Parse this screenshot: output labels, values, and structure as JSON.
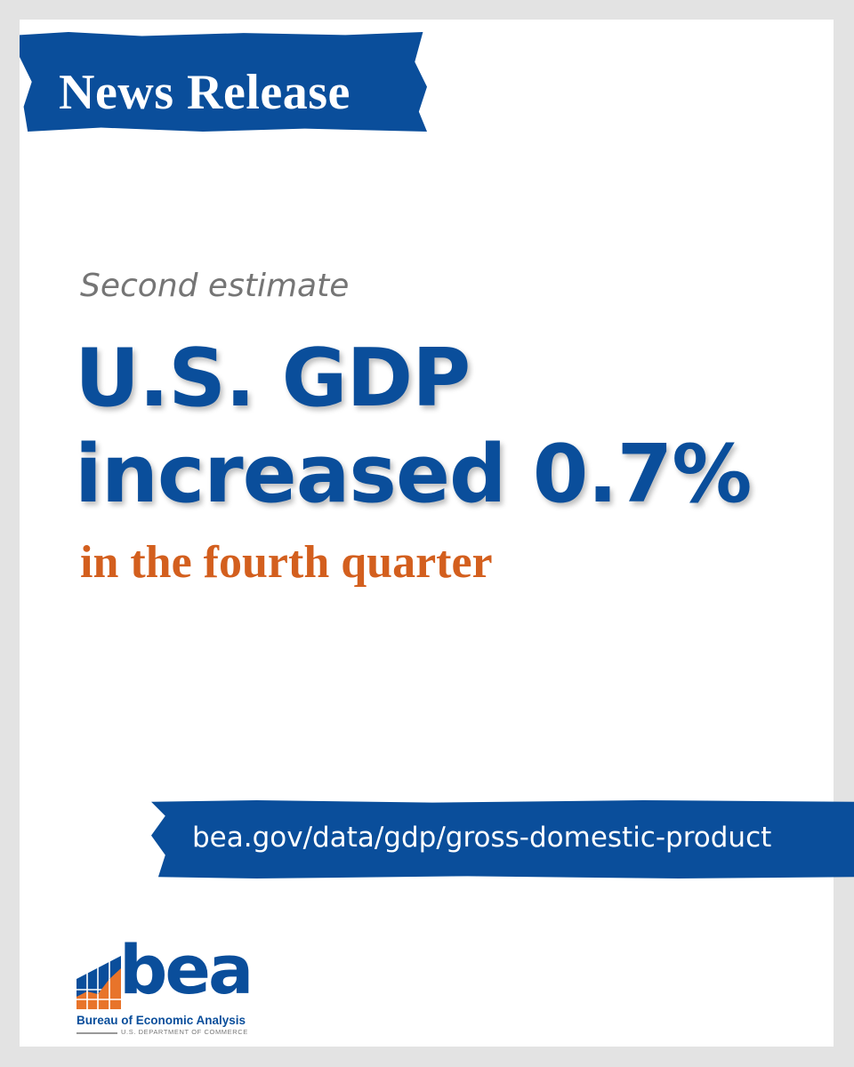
{
  "banner": {
    "label": "News Release"
  },
  "kicker": "Second estimate",
  "headline": {
    "line1": "U.S. GDP",
    "line2": "increased 0.7%"
  },
  "subhead": "in the fourth quarter",
  "link": {
    "url_text": "bea.gov/data/gdp/gross-domestic-product"
  },
  "logo": {
    "wordmark": "bea",
    "agency": "Bureau of Economic Analysis",
    "department": "U.S. DEPARTMENT OF COMMERCE"
  },
  "colors": {
    "brand_blue": "#0a4e9b",
    "accent_orange": "#d35f1e",
    "kicker_gray": "#757575",
    "background": "#e3e3e3"
  }
}
